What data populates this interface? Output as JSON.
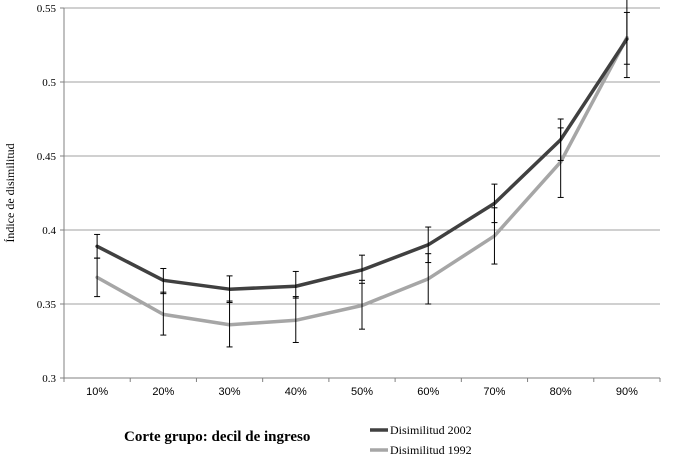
{
  "chart_data": {
    "type": "line",
    "title": "",
    "xlabel": "Corte grupo: decil de ingreso",
    "ylabel": "Índice de disimilitud",
    "categories": [
      "10%",
      "20%",
      "30%",
      "40%",
      "50%",
      "60%",
      "70%",
      "80%",
      "90%"
    ],
    "ylim": [
      0.3,
      0.55
    ],
    "yticks": [
      "0.3",
      "0.35",
      "0.4",
      "0.45",
      "0.5",
      "0.55"
    ],
    "grid": true,
    "legend": "bottom-right",
    "series": [
      {
        "name": "Disimilitud 2002",
        "color": "#404040",
        "values": [
          0.389,
          0.366,
          0.36,
          0.362,
          0.373,
          0.39,
          0.418,
          0.461,
          0.529
        ],
        "err_low": [
          0.381,
          0.357,
          0.351,
          0.354,
          0.364,
          0.378,
          0.405,
          0.447,
          0.512
        ],
        "err_high": [
          0.397,
          0.374,
          0.369,
          0.372,
          0.383,
          0.402,
          0.431,
          0.475,
          0.547
        ]
      },
      {
        "name": "Disimilitud 1992",
        "color": "#a6a6a6",
        "values": [
          0.368,
          0.343,
          0.336,
          0.339,
          0.349,
          0.367,
          0.396,
          0.446,
          0.53
        ],
        "err_low": [
          0.355,
          0.329,
          0.321,
          0.324,
          0.333,
          0.35,
          0.377,
          0.422,
          0.503
        ],
        "err_high": [
          0.381,
          0.358,
          0.352,
          0.355,
          0.366,
          0.384,
          0.415,
          0.469,
          0.556
        ]
      }
    ]
  }
}
